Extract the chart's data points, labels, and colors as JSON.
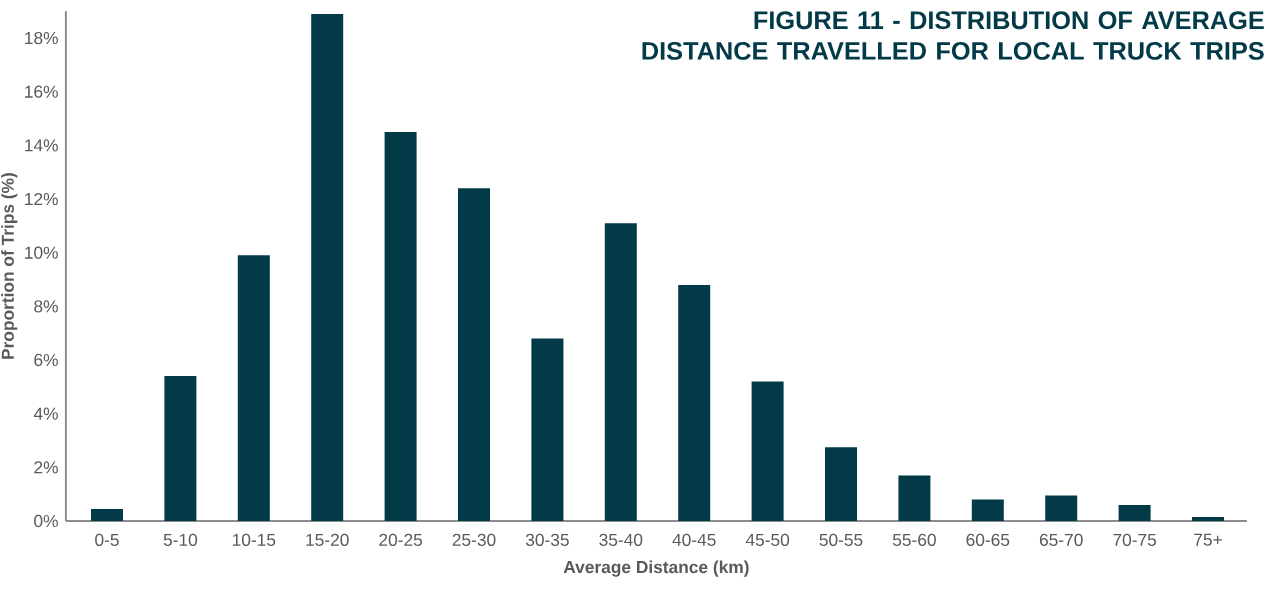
{
  "chart_data": {
    "type": "bar",
    "title": "FIGURE 11 - DISTRIBUTION OF AVERAGE DISTANCE TRAVELLED FOR LOCAL TRUCK TRIPS",
    "xlabel": "Average Distance (km)",
    "ylabel": "Proportion of Trips (%)",
    "categories": [
      "0-5",
      "5-10",
      "10-15",
      "15-20",
      "20-25",
      "25-30",
      "30-35",
      "35-40",
      "40-45",
      "45-50",
      "50-55",
      "55-60",
      "60-65",
      "65-70",
      "70-75",
      "75+"
    ],
    "values": [
      0.45,
      5.4,
      9.9,
      18.9,
      14.5,
      12.4,
      6.8,
      11.1,
      8.8,
      5.2,
      2.75,
      1.7,
      0.8,
      0.95,
      0.6,
      0.15
    ],
    "color": "#023a48",
    "ylim": [
      0,
      19
    ],
    "yticks": [
      {
        "value": 0,
        "label": "0%"
      },
      {
        "value": 2,
        "label": "2%"
      },
      {
        "value": 4,
        "label": "4%"
      },
      {
        "value": 6,
        "label": "6%"
      },
      {
        "value": 8,
        "label": "8%"
      },
      {
        "value": 10,
        "label": "10%"
      },
      {
        "value": 12,
        "label": "12%"
      },
      {
        "value": 14,
        "label": "14%"
      },
      {
        "value": 16,
        "label": "16%"
      },
      {
        "value": 18,
        "label": "18%"
      }
    ],
    "grid": false
  }
}
